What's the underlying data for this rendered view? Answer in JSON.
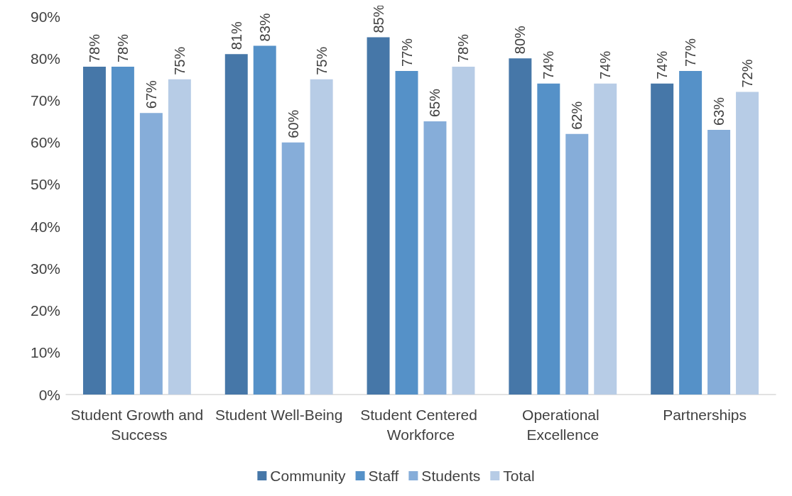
{
  "chart_data": {
    "type": "bar",
    "categories": [
      "Student Growth and Success",
      "Student Well-Being",
      "Student Centered Workforce",
      "Operational Excellence",
      "Partnerships"
    ],
    "series": [
      {
        "name": "Community",
        "color": "#4677a8",
        "values": [
          78,
          81,
          85,
          80,
          74
        ],
        "value_labels": [
          "78%",
          "81%",
          "85%",
          "80%",
          "74%"
        ]
      },
      {
        "name": "Staff",
        "color": "#5591c8",
        "values": [
          78,
          83,
          77,
          74,
          77
        ],
        "value_labels": [
          "78%",
          "83%",
          "77%",
          "74%",
          "77%"
        ]
      },
      {
        "name": "Students",
        "color": "#86add9",
        "values": [
          67,
          60,
          65,
          62,
          63
        ],
        "value_labels": [
          "67%",
          "60%",
          "65%",
          "62%",
          "63%"
        ]
      },
      {
        "name": "Total",
        "color": "#b7cce6",
        "values": [
          75,
          75,
          78,
          74,
          72
        ],
        "value_labels": [
          "75%",
          "75%",
          "78%",
          "74%",
          "72%"
        ]
      }
    ],
    "ylim": [
      0,
      90
    ],
    "yticks": [
      {
        "value": 0,
        "label": "0%"
      },
      {
        "value": 10,
        "label": "10%"
      },
      {
        "value": 20,
        "label": "20%"
      },
      {
        "value": 30,
        "label": "30%"
      },
      {
        "value": 40,
        "label": "40%"
      },
      {
        "value": 50,
        "label": "50%"
      },
      {
        "value": 60,
        "label": "60%"
      },
      {
        "value": 70,
        "label": "70%"
      },
      {
        "value": 80,
        "label": "80%"
      },
      {
        "value": 90,
        "label": "90%"
      }
    ],
    "grid": false,
    "legend": "bottom"
  }
}
